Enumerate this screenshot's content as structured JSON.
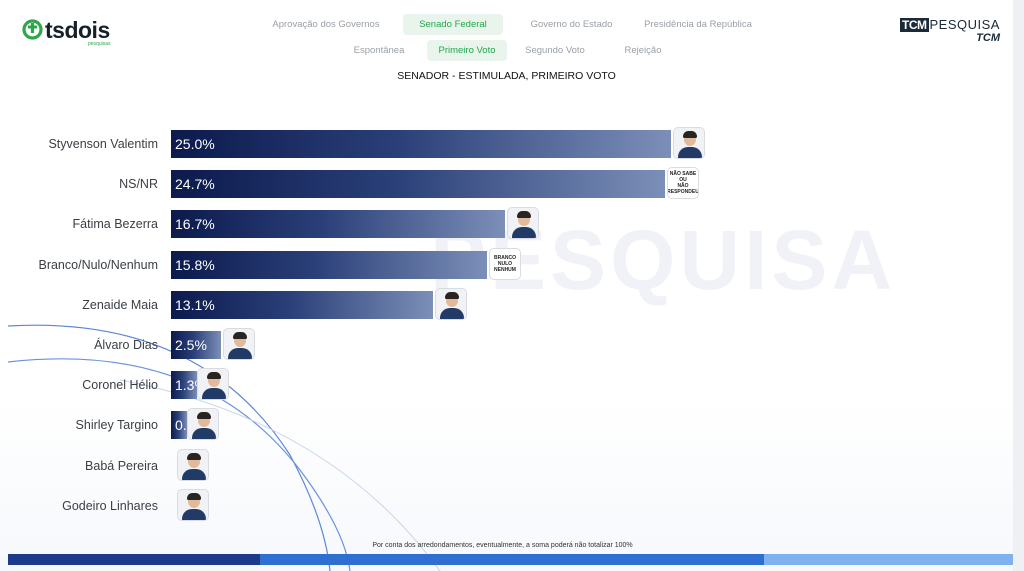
{
  "logo": {
    "name": "tsdois",
    "sub": "pesquisas"
  },
  "nav": {
    "row1": [
      "Aprovação dos Governos",
      "Senado Federal",
      "Governo do Estado",
      "Presidência da República"
    ],
    "row2": [
      "Espontânea",
      "Primeiro Voto",
      "Segundo Voto",
      "Rejeição"
    ],
    "active_row1": "Senado Federal",
    "active_row2": "Primeiro Voto"
  },
  "brand": {
    "box": "TCM",
    "word": "PESQUISA",
    "sub": "TCM"
  },
  "watermark": "PESQUISA",
  "footnote": "Por conta dos arredondamentos, eventualmente, a soma poderá não totalizar 100%",
  "colors": {
    "bar_dark": "#0c1a4d",
    "bar_light": "#7c8fb8",
    "active_tab": "#1ea84a",
    "stripe_dark": "#1e3a8a",
    "stripe_mid": "#2f6fd1",
    "stripe_light": "#7fb0f0"
  },
  "cards": {
    "nsnr": "NÃO SABE\nOU\nNÃO RESPONDEU",
    "branco": "BRANCO\nNULO\nNENHUM"
  },
  "chart_data": {
    "type": "bar",
    "orientation": "horizontal",
    "title": "SENADOR - ESTIMULADA, PRIMEIRO VOTO",
    "categories": [
      "Styvenson Valentim",
      "NS/NR",
      "Fátima Bezerra",
      "Branco/Nulo/Nenhum",
      "Zenaide Maia",
      "Álvaro Dias",
      "Coronel Hélio",
      "Shirley Targino",
      "Babá Pereira",
      "Godeiro Linhares"
    ],
    "values": [
      25.0,
      24.7,
      16.7,
      15.8,
      13.1,
      2.5,
      1.3,
      0.8,
      0,
      0
    ],
    "labels": [
      "25.0%",
      "24.7%",
      "16.7%",
      "15.8%",
      "13.1%",
      "2.5%",
      "1.3%",
      "0.8%",
      "",
      ""
    ],
    "unit": "%",
    "xlim": [
      0,
      25
    ]
  }
}
